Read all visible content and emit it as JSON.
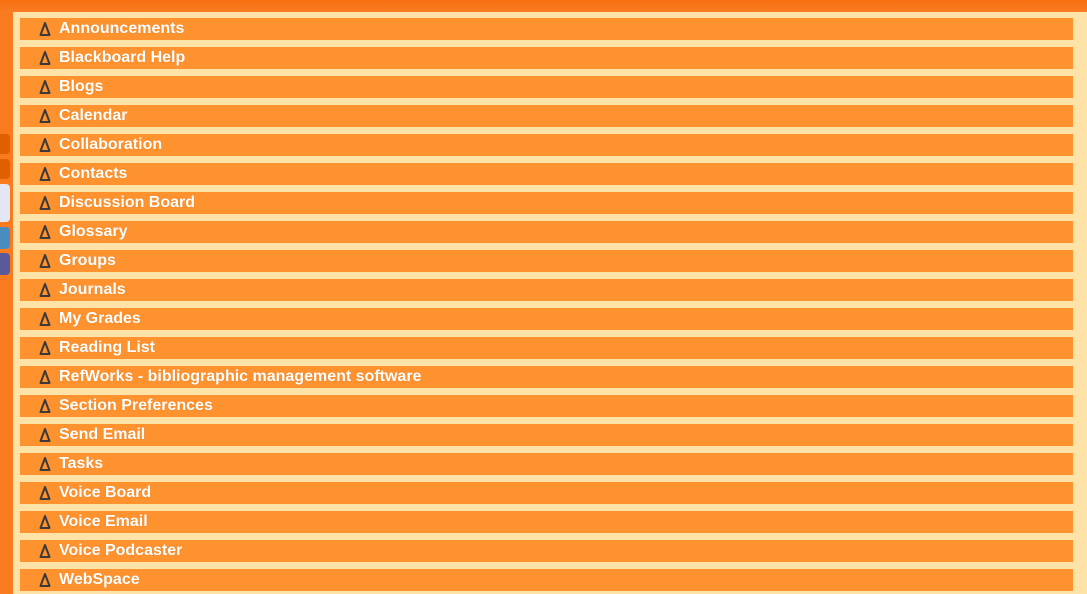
{
  "colors": {
    "page_background": "#f97a1f",
    "panel_background": "#fde3a7",
    "row_background": "#fe922e",
    "row_text": "#ffffff",
    "icon_color": "#3a3a3a",
    "side_tab_colors": [
      "#e05f00",
      "#e05f00",
      "#e4e7f2",
      "#4a8cc0",
      "#5a5a9a"
    ]
  },
  "tools": {
    "icon": "tool-link-icon",
    "items": [
      {
        "label": "Announcements"
      },
      {
        "label": "Blackboard Help"
      },
      {
        "label": "Blogs"
      },
      {
        "label": "Calendar"
      },
      {
        "label": "Collaboration"
      },
      {
        "label": "Contacts"
      },
      {
        "label": "Discussion Board"
      },
      {
        "label": "Glossary"
      },
      {
        "label": "Groups"
      },
      {
        "label": "Journals"
      },
      {
        "label": "My Grades"
      },
      {
        "label": "Reading List"
      },
      {
        "label": "RefWorks - bibliographic management software"
      },
      {
        "label": "Section Preferences"
      },
      {
        "label": "Send Email"
      },
      {
        "label": "Tasks"
      },
      {
        "label": "Voice Board"
      },
      {
        "label": "Voice Email"
      },
      {
        "label": "Voice Podcaster"
      },
      {
        "label": "WebSpace"
      }
    ]
  }
}
